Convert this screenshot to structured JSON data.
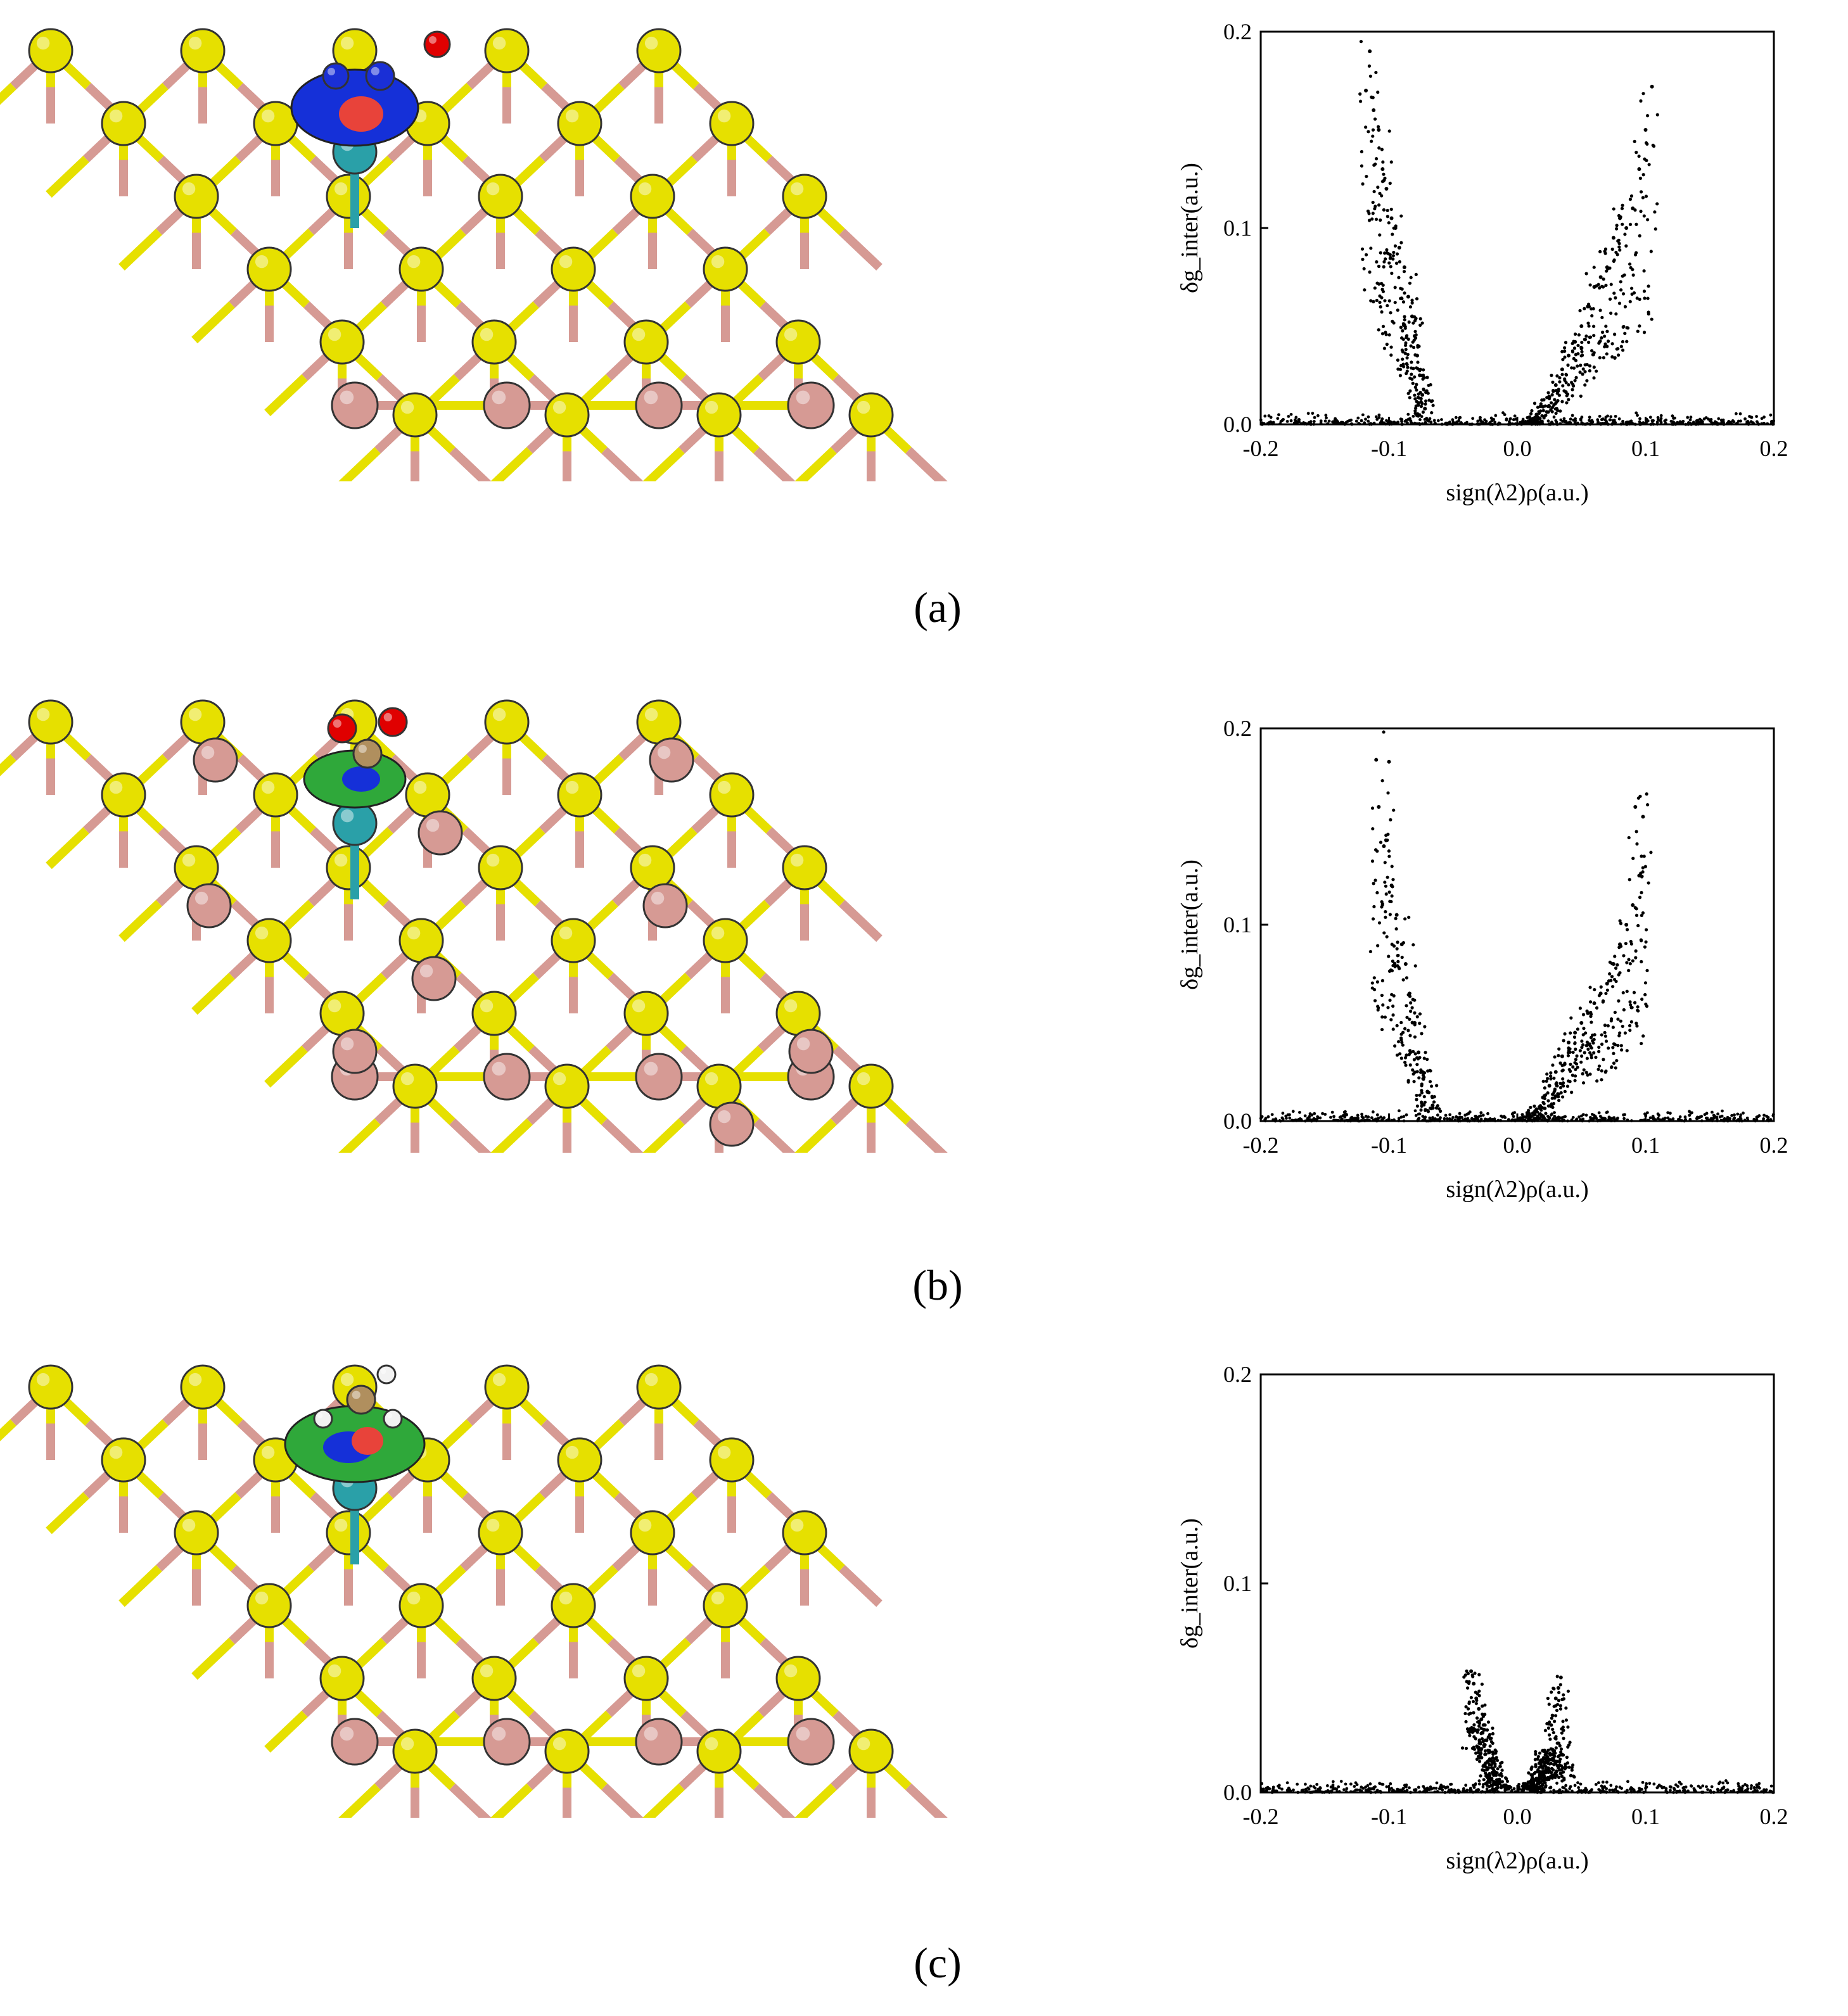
{
  "panels": [
    {
      "tag": "(a)",
      "adsorbate": "NO2",
      "chart_data": {
        "type": "scatter",
        "xlabel": "sign(λ2)ρ(a.u.)",
        "ylabel": "δg_inter(a.u.)",
        "xlim": [
          -0.2,
          0.2
        ],
        "ylim": [
          0.0,
          0.2
        ],
        "xticks": [
          -0.2,
          -0.1,
          0.0,
          0.1,
          0.2
        ],
        "xtick_labels": [
          "-0.2",
          "-0.1",
          "0.0",
          "0.1",
          "0.2"
        ],
        "yticks": [
          0.0,
          0.1,
          0.2
        ],
        "ytick_labels": [
          "0.0",
          "0.1",
          "0.2"
        ],
        "grid": false,
        "marker_color": "#000000",
        "series": [
          {
            "x": [
              -0.115,
              -0.118,
              -0.112,
              -0.108,
              -0.105,
              -0.102,
              -0.098,
              -0.095,
              -0.092,
              -0.088,
              -0.085,
              -0.082,
              -0.08,
              -0.078,
              -0.076,
              -0.074,
              -0.072
            ],
            "y": [
              0.19,
              0.17,
              0.16,
              0.15,
              0.13,
              0.12,
              0.105,
              0.1,
              0.09,
              0.08,
              0.065,
              0.055,
              0.045,
              0.035,
              0.025,
              0.015,
              0.008
            ]
          },
          {
            "x": [
              0.105,
              0.1,
              0.095,
              0.09,
              0.085,
              0.08,
              0.075,
              0.07,
              0.065,
              0.06,
              0.055,
              0.05,
              0.045,
              0.04,
              0.035,
              0.03,
              0.025,
              0.02,
              0.015,
              0.01,
              0.005
            ],
            "y": [
              0.172,
              0.15,
              0.13,
              0.11,
              0.1,
              0.105,
              0.095,
              0.08,
              0.075,
              0.07,
              0.06,
              0.05,
              0.042,
              0.035,
              0.028,
              0.02,
              0.014,
              0.009,
              0.005,
              0.002,
              0.0005
            ]
          }
        ]
      }
    },
    {
      "tag": "(b)",
      "adsorbate": "CO2",
      "chart_data": {
        "type": "scatter",
        "xlabel": "sign(λ2)ρ(a.u.)",
        "ylabel": "δg_inter(a.u.)",
        "xlim": [
          -0.2,
          0.2
        ],
        "ylim": [
          0.0,
          0.2
        ],
        "xticks": [
          -0.2,
          -0.1,
          0.0,
          0.1,
          0.2
        ],
        "xtick_labels": [
          "-0.2",
          "-0.1",
          "0.0",
          "0.1",
          "0.2"
        ],
        "yticks": [
          0.0,
          0.1,
          0.2
        ],
        "ytick_labels": [
          "0.0",
          "0.1",
          "0.2"
        ],
        "grid": false,
        "marker_color": "#000000",
        "series": [
          {
            "x": [
              -0.11,
              -0.1,
              -0.108,
              -0.104,
              -0.098,
              -0.094,
              -0.09,
              -0.087,
              -0.084,
              -0.08,
              -0.077,
              -0.074,
              -0.07,
              -0.066
            ],
            "y": [
              0.184,
              0.183,
              0.16,
              0.14,
              0.12,
              0.105,
              0.09,
              0.08,
              0.065,
              0.05,
              0.035,
              0.025,
              0.015,
              0.008
            ]
          },
          {
            "x": [
              0.092,
              0.098,
              0.095,
              0.09,
              0.085,
              0.08,
              0.075,
              0.07,
              0.065,
              0.06,
              0.055,
              0.05,
              0.045,
              0.04,
              0.035,
              0.03,
              0.025,
              0.02,
              0.015,
              0.01
            ],
            "y": [
              0.16,
              0.155,
              0.125,
              0.11,
              0.1,
              0.09,
              0.08,
              0.07,
              0.065,
              0.06,
              0.055,
              0.05,
              0.045,
              0.04,
              0.033,
              0.025,
              0.018,
              0.012,
              0.006,
              0.002
            ]
          }
        ]
      }
    },
    {
      "tag": "(c)",
      "adsorbate": "CH3",
      "chart_data": {
        "type": "scatter",
        "xlabel": "sign(λ2)ρ(a.u.)",
        "ylabel": "δg_inter(a.u.)",
        "xlim": [
          -0.2,
          0.2
        ],
        "ylim": [
          0.0,
          0.2
        ],
        "xticks": [
          -0.2,
          -0.1,
          0.0,
          0.1,
          0.2
        ],
        "xtick_labels": [
          "-0.2",
          "-0.1",
          "0.0",
          "0.1",
          "0.2"
        ],
        "yticks": [
          0.0,
          0.1,
          0.2
        ],
        "ytick_labels": [
          "0.0",
          "0.1",
          "0.2"
        ],
        "grid": false,
        "marker_color": "#000000",
        "series": [
          {
            "x": [
              -0.036,
              -0.034,
              -0.032,
              -0.03,
              -0.028,
              -0.026,
              -0.024,
              -0.022,
              -0.02,
              -0.018,
              -0.015,
              -0.012
            ],
            "y": [
              0.058,
              0.052,
              0.045,
              0.04,
              0.035,
              0.03,
              0.025,
              0.02,
              0.015,
              0.01,
              0.006,
              0.003
            ]
          },
          {
            "x": [
              0.034,
              0.032,
              0.03,
              0.028,
              0.026,
              0.024,
              0.022,
              0.02,
              0.018,
              0.016,
              0.014,
              0.012,
              0.01,
              0.035,
              0.038
            ],
            "y": [
              0.055,
              0.05,
              0.045,
              0.02,
              0.018,
              0.015,
              0.018,
              0.02,
              0.015,
              0.01,
              0.006,
              0.004,
              0.002,
              0.018,
              0.012
            ]
          }
        ]
      }
    }
  ],
  "colors": {
    "sulfur": "#e6e000",
    "metal": "#d69a94",
    "single_atom": "#2aa0a8",
    "oxygen": "#e00000",
    "nitrogen": "#1a2fd6",
    "carbon": "#b08f5e",
    "hydrogen": "#f2f2f2",
    "isosurface_green": "#2fa83a",
    "isosurface_blue": "#1530d8",
    "isosurface_red": "#e8433a"
  }
}
